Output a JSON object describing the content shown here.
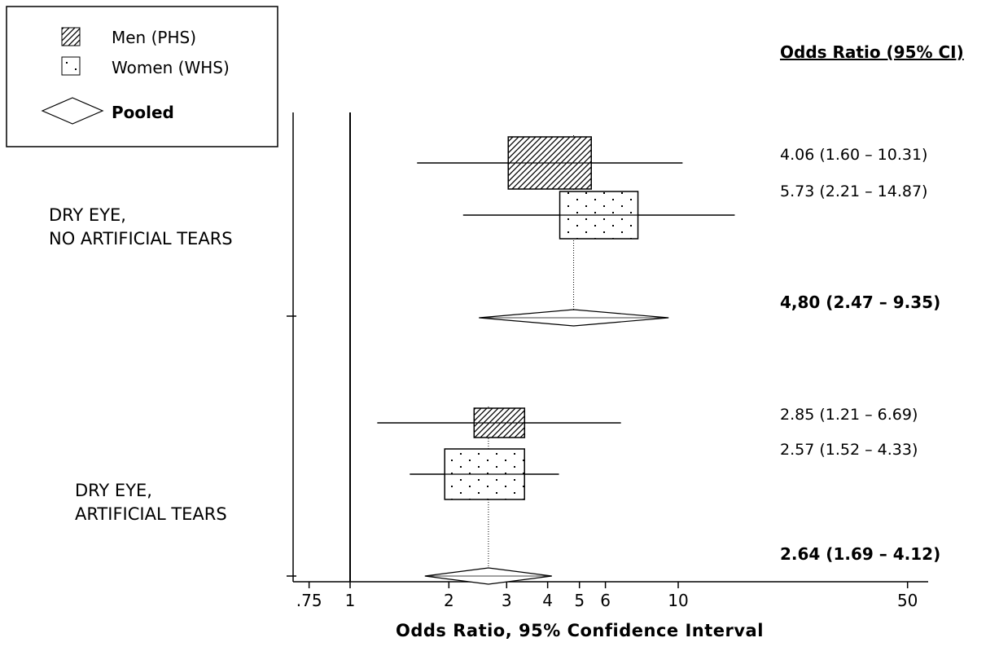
{
  "legend": {
    "items": [
      {
        "label": "Men (PHS)",
        "symbol": "hatched-box"
      },
      {
        "label": "Women (WHS)",
        "symbol": "dotted-box"
      },
      {
        "label": "Pooled",
        "symbol": "diamond"
      }
    ]
  },
  "ci_header": "Odds Ratio (95% CI)",
  "groups": [
    {
      "label_line1": "DRY EYE,",
      "label_line2": "NO ARTIFICIAL TEARS"
    },
    {
      "label_line1": "DRY EYE,",
      "label_line2": "ARTIFICIAL TEARS"
    }
  ],
  "ci_text": [
    "4.06 (1.60 – 10.31)",
    "5.73 (2.21 – 14.87)",
    "4,80 (2.47 – 9.35)",
    "2.85 (1.21 – 6.69)",
    "2.57 (1.52 – 4.33)",
    "2.64 (1.69 – 4.12)"
  ],
  "x_title": "Odds Ratio, 95% Confidence Interval",
  "chart_data": {
    "type": "forest",
    "x_scale": "log",
    "xlim": [
      0.75,
      50
    ],
    "xticks": [
      0.75,
      1,
      2,
      3,
      4,
      5,
      6,
      10,
      50
    ],
    "xtick_labels": [
      ".75",
      "1",
      "2",
      "3",
      "4",
      "5",
      "6",
      "10",
      "50"
    ],
    "reference_line": 1,
    "series": [
      {
        "name": "Men (PHS)",
        "style": "hatched"
      },
      {
        "name": "Women (WHS)",
        "style": "dotted"
      },
      {
        "name": "Pooled",
        "style": "diamond"
      }
    ],
    "rows": [
      {
        "group": 0,
        "series": "Men (PHS)",
        "or": 4.06,
        "lo": 1.6,
        "hi": 10.31
      },
      {
        "group": 0,
        "series": "Women (WHS)",
        "or": 5.73,
        "lo": 2.21,
        "hi": 14.87
      },
      {
        "group": 0,
        "series": "Pooled",
        "or": 4.8,
        "lo": 2.47,
        "hi": 9.35
      },
      {
        "group": 1,
        "series": "Men (PHS)",
        "or": 2.85,
        "lo": 1.21,
        "hi": 6.69
      },
      {
        "group": 1,
        "series": "Women (WHS)",
        "or": 2.57,
        "lo": 1.52,
        "hi": 4.33
      },
      {
        "group": 1,
        "series": "Pooled",
        "or": 2.64,
        "lo": 1.69,
        "hi": 4.12
      }
    ]
  }
}
